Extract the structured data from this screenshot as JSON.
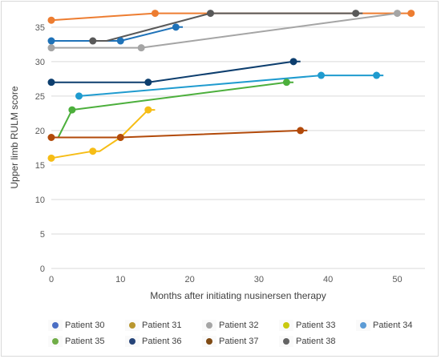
{
  "chart_data": {
    "type": "line",
    "title": "",
    "xlabel": "Months after initiating nusinersen therapy",
    "ylabel": "Upper limb RULM score",
    "xlim": [
      0,
      54
    ],
    "ylim": [
      0,
      38
    ],
    "xticks": [
      0,
      10,
      20,
      30,
      40,
      50
    ],
    "yticks": [
      0,
      5,
      10,
      15,
      20,
      25,
      30,
      35
    ],
    "grid": "horizontal",
    "legend_position": "bottom",
    "series": [
      {
        "name": "Patient 30",
        "color": "#4a6ec4",
        "marker_color": "#ed7d31",
        "line_color": "#ed7d31",
        "points": [
          [
            0,
            36
          ],
          [
            15,
            37
          ],
          [
            52,
            37
          ]
        ]
      },
      {
        "name": "Patient 31",
        "color": "#b8962e",
        "marker_color": "#1f72b8",
        "line_color": "#1f72b8",
        "points": [
          [
            0,
            33
          ],
          [
            10,
            33
          ],
          [
            18,
            35
          ],
          [
            19,
            35
          ]
        ]
      },
      {
        "name": "Patient 32",
        "color": "#a5a5a5",
        "marker_color": "#a5a5a5",
        "line_color": "#a5a5a5",
        "points": [
          [
            0,
            32
          ],
          [
            13,
            32
          ],
          [
            50,
            37
          ]
        ]
      },
      {
        "name": "Patient 33",
        "color": "#c9c90f",
        "marker_color": "#f6bd16",
        "line_color": "#f6bd16",
        "points": [
          [
            0,
            16
          ],
          [
            6,
            17
          ],
          [
            7,
            17
          ],
          [
            10,
            19
          ],
          [
            14,
            23
          ],
          [
            15,
            23
          ]
        ]
      },
      {
        "name": "Patient 34",
        "color": "#5b9bd5",
        "marker_color": "#1f9bcf",
        "line_color": "#1f9bcf",
        "points": [
          [
            4,
            25
          ],
          [
            39,
            28
          ],
          [
            47,
            28
          ],
          [
            48,
            28
          ]
        ]
      },
      {
        "name": "Patient 35",
        "color": "#70ad47",
        "marker_color": "#4caf3c",
        "line_color": "#4caf3c",
        "points": [
          [
            1,
            19
          ],
          [
            3,
            23
          ],
          [
            34,
            27
          ],
          [
            35,
            27
          ]
        ]
      },
      {
        "name": "Patient 36",
        "color": "#264478",
        "marker_color": "#0d3e6e",
        "line_color": "#0d3e6e",
        "points": [
          [
            0,
            27
          ],
          [
            14,
            27
          ],
          [
            35,
            30
          ],
          [
            36,
            30
          ]
        ]
      },
      {
        "name": "Patient 37",
        "color": "#7f4a14",
        "marker_color": "#b24a0a",
        "line_color": "#b24a0a",
        "points": [
          [
            0,
            19
          ],
          [
            10,
            19
          ],
          [
            36,
            20
          ],
          [
            37,
            20
          ]
        ]
      },
      {
        "name": "Patient 38",
        "color": "#636363",
        "marker_color": "#595959",
        "line_color": "#595959",
        "points": [
          [
            6,
            33
          ],
          [
            8,
            33
          ],
          [
            23,
            37
          ],
          [
            44,
            37
          ],
          [
            45,
            37
          ]
        ]
      }
    ],
    "markers": {
      "Patient 30": [
        [
          0,
          36
        ],
        [
          15,
          37
        ],
        [
          52,
          37
        ]
      ],
      "Patient 31": [
        [
          0,
          33
        ],
        [
          10,
          33
        ],
        [
          18,
          35
        ]
      ],
      "Patient 32": [
        [
          0,
          32
        ],
        [
          13,
          32
        ],
        [
          50,
          37
        ]
      ],
      "Patient 33": [
        [
          0,
          16
        ],
        [
          6,
          17
        ],
        [
          10,
          19
        ],
        [
          14,
          23
        ]
      ],
      "Patient 34": [
        [
          4,
          25
        ],
        [
          39,
          28
        ],
        [
          47,
          28
        ]
      ],
      "Patient 35": [
        [
          3,
          23
        ],
        [
          34,
          27
        ]
      ],
      "Patient 36": [
        [
          0,
          27
        ],
        [
          14,
          27
        ],
        [
          35,
          30
        ]
      ],
      "Patient 37": [
        [
          0,
          19
        ],
        [
          10,
          19
        ],
        [
          36,
          20
        ]
      ],
      "Patient 38": [
        [
          6,
          33
        ],
        [
          23,
          37
        ],
        [
          44,
          37
        ]
      ]
    }
  }
}
